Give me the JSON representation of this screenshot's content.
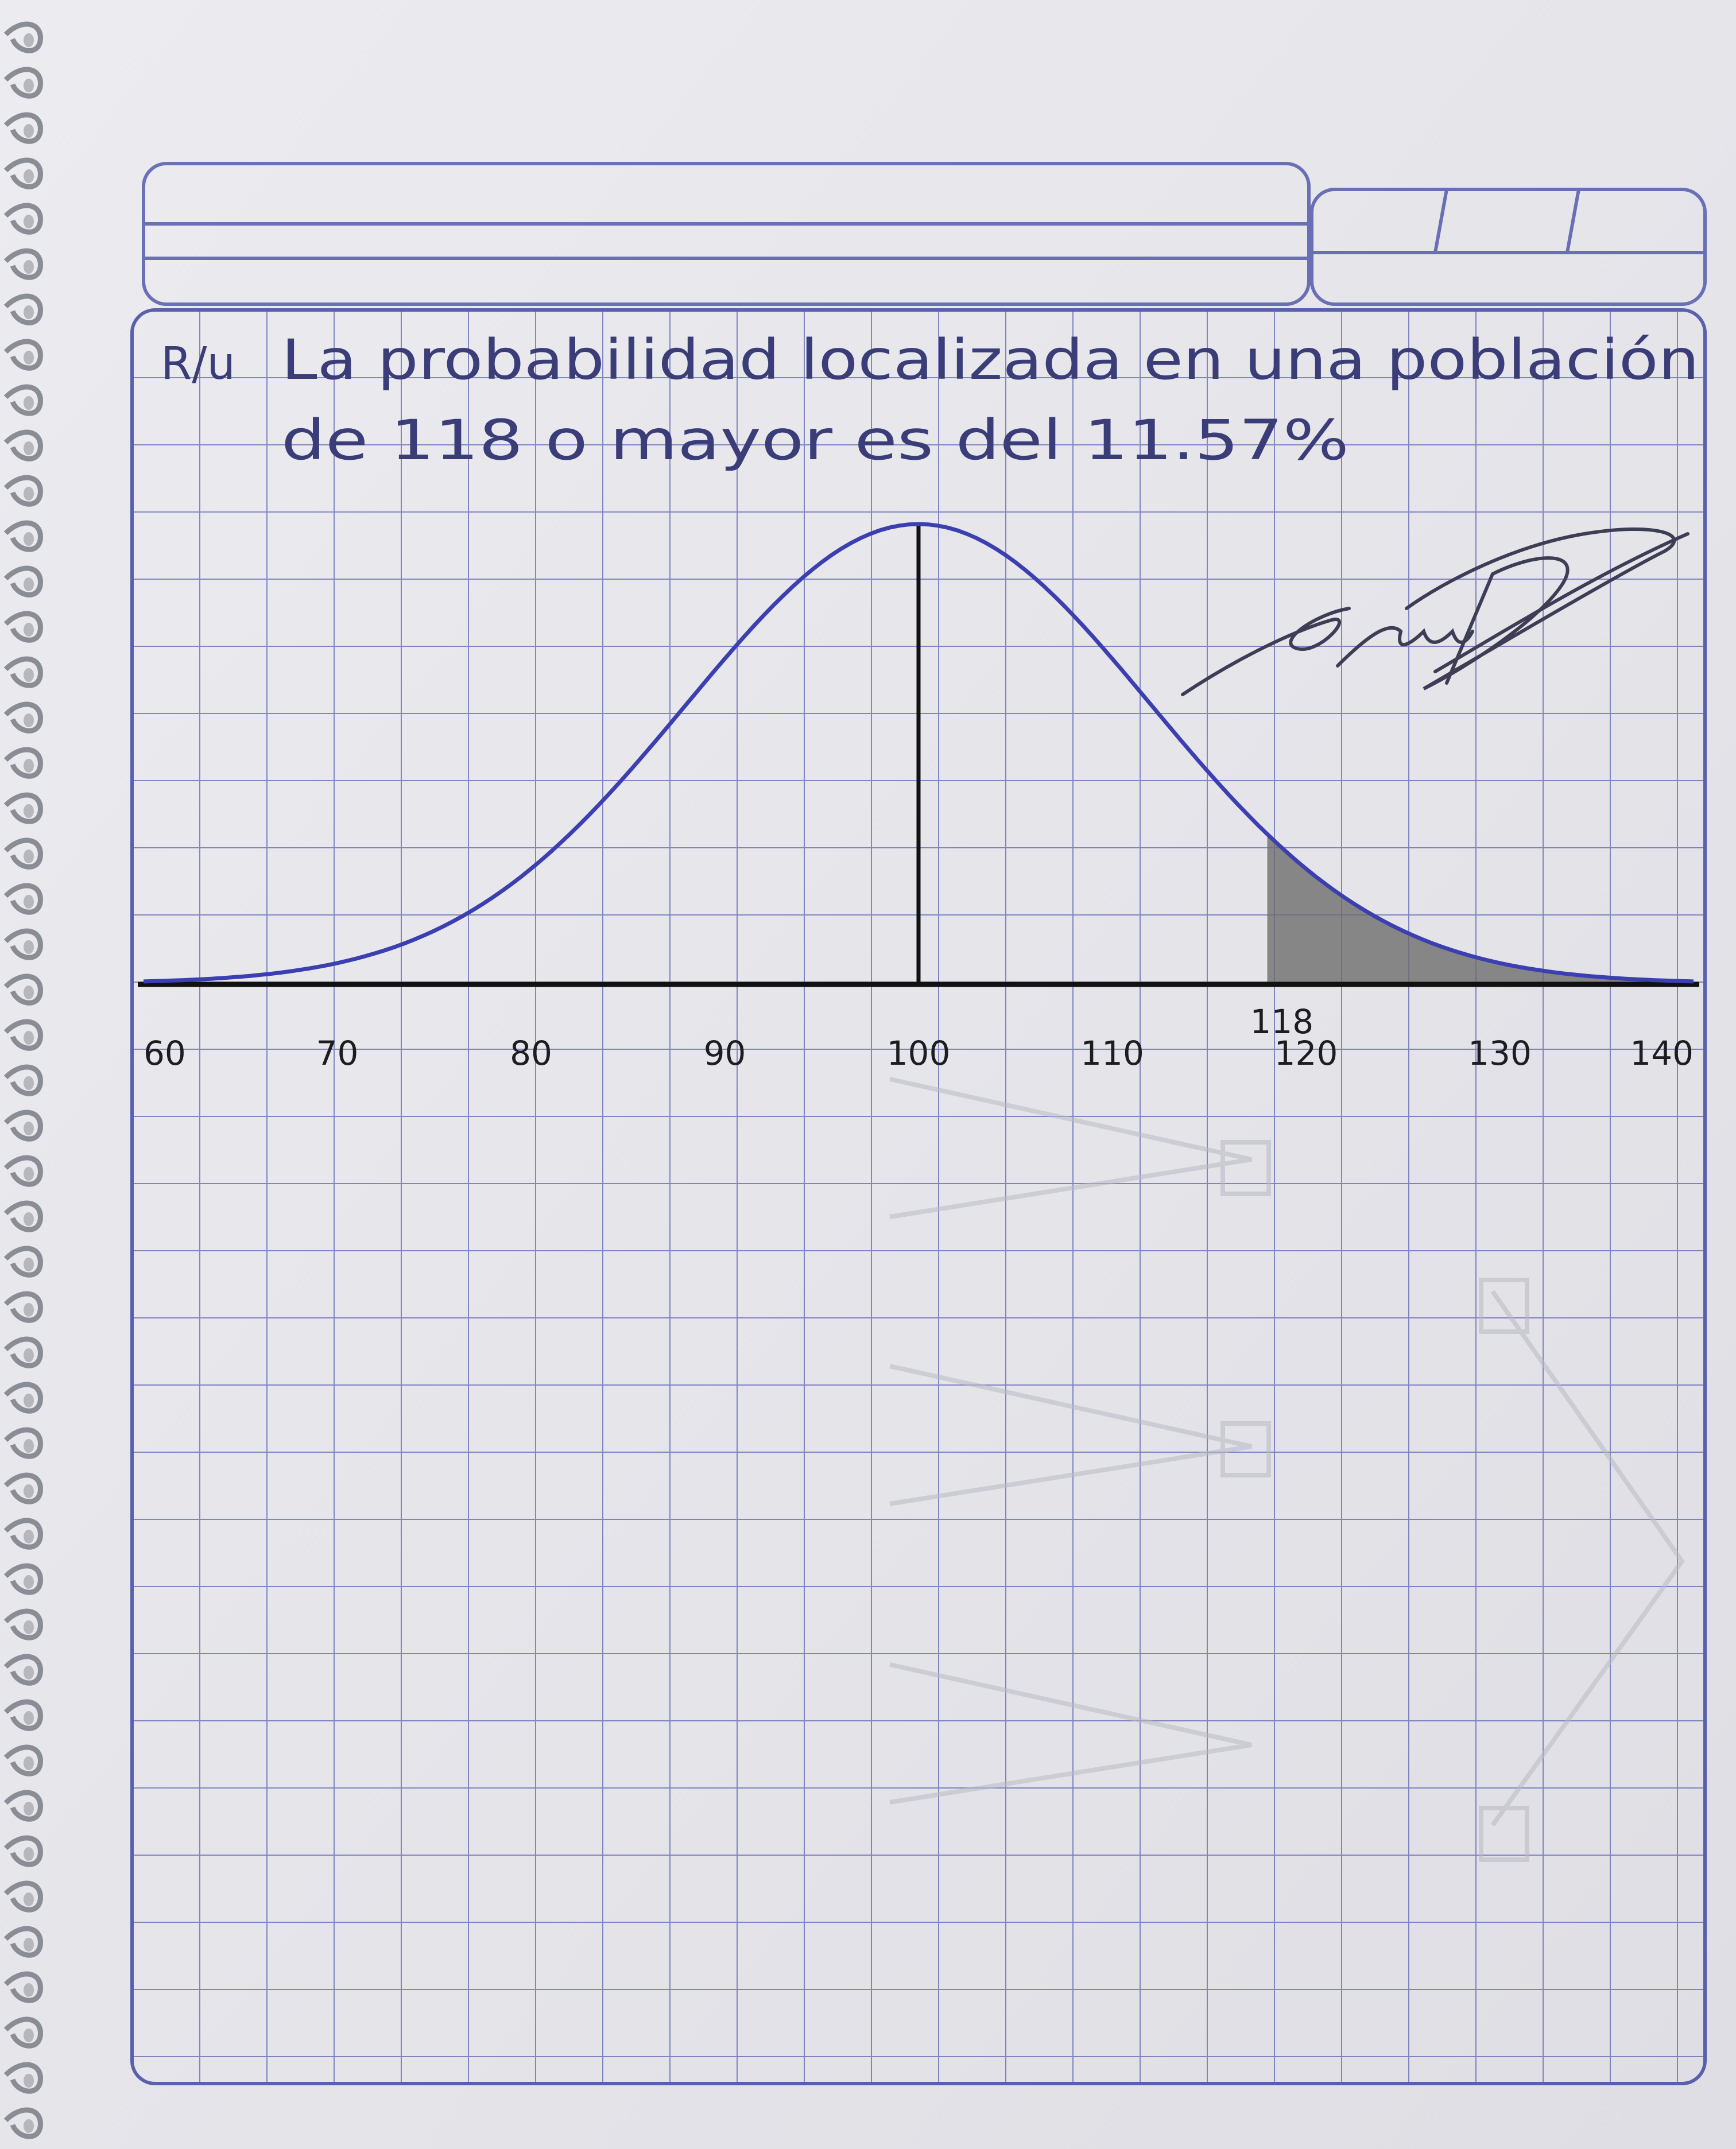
{
  "colors": {
    "paper": "#e9e9ee",
    "grid": "#4a52a8",
    "ink": "#2e3366",
    "curve": "#3b3fb0",
    "shade": "#6c6c6c",
    "axis": "#111111"
  },
  "note": {
    "prefix": "R/u",
    "line1": "La probabilidad localizada en una población",
    "line2": "de 118 o mayor es del 11.57%"
  },
  "graph": {
    "mean": 100,
    "shade_from": 118,
    "x_ticks": [
      "60",
      "70",
      "80",
      "90",
      "100",
      "110",
      "120",
      "130",
      "140"
    ],
    "marker_label": "118"
  }
}
